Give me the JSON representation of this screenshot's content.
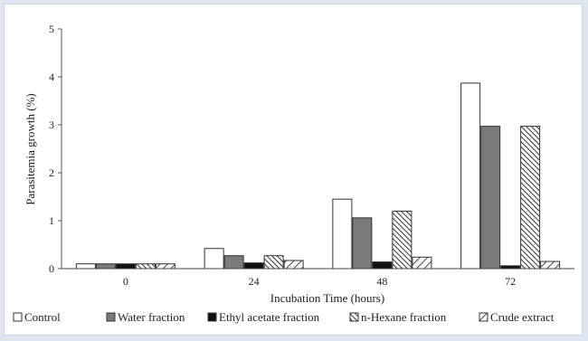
{
  "chart_data": {
    "type": "bar",
    "title": "",
    "xlabel": "Incubation Time (hours)",
    "ylabel": "Parasitemia growth (%)",
    "ylim": [
      0,
      5
    ],
    "yticks": [
      "0",
      "1",
      "2",
      "3",
      "4",
      "5"
    ],
    "categories": [
      "0",
      "24",
      "48",
      "72"
    ],
    "grid": false,
    "legend_position": "bottom",
    "series": [
      {
        "name": "Control",
        "style": "white",
        "values": [
          0.1,
          0.42,
          1.45,
          3.87
        ]
      },
      {
        "name": "Water fraction",
        "style": "gray",
        "values": [
          0.1,
          0.27,
          1.06,
          2.97
        ]
      },
      {
        "name": "Ethyl acetate fraction",
        "style": "black",
        "values": [
          0.1,
          0.12,
          0.14,
          0.06
        ]
      },
      {
        "name": "n-Hexane fraction",
        "style": "dense-hatch",
        "values": [
          0.1,
          0.27,
          1.2,
          2.97
        ]
      },
      {
        "name": "Crude extract",
        "style": "sparse-hatch",
        "values": [
          0.1,
          0.17,
          0.24,
          0.15
        ]
      }
    ]
  },
  "colors": {
    "gray_fill": "#7a7a7a",
    "black_fill": "#111111",
    "border": "#333333",
    "background": "#dfe6f2"
  }
}
